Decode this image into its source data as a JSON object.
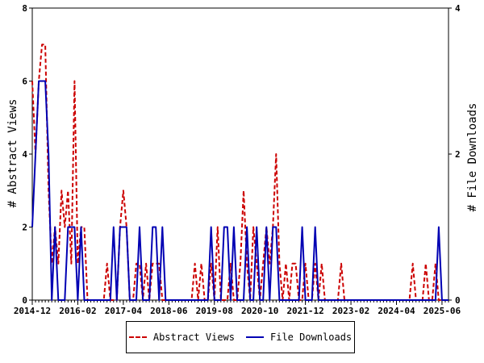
{
  "chart_data": {
    "type": "line",
    "xlabel": "",
    "ylabel": "# Abstract Views",
    "y2label": "# File Downloads",
    "ylim": [
      0,
      8
    ],
    "y2lim": [
      0,
      4
    ],
    "yticks": [
      0,
      2,
      4,
      6,
      8
    ],
    "y2ticks": [
      0,
      2,
      4
    ],
    "xrange": [
      "2014-12",
      "2025-08"
    ],
    "xtick_labels": [
      "2014-12",
      "2016-02",
      "2017-04",
      "2018-06",
      "2019-08",
      "2020-10",
      "2021-12",
      "2023-02",
      "2024-04",
      "2025-06"
    ],
    "grid": false,
    "legend_position": "bottom-center",
    "series": [
      {
        "name": "Abstract Views",
        "axis": "left",
        "color": "#cc0000",
        "style": "dashed",
        "points": [
          [
            "2014-12",
            6
          ],
          [
            "2015-01",
            4
          ],
          [
            "2015-02",
            6
          ],
          [
            "2015-03",
            7
          ],
          [
            "2015-04",
            7
          ],
          [
            "2015-05",
            3
          ],
          [
            "2015-06",
            1
          ],
          [
            "2015-07",
            2
          ],
          [
            "2015-08",
            1
          ],
          [
            "2015-09",
            3
          ],
          [
            "2015-10",
            2
          ],
          [
            "2015-11",
            3
          ],
          [
            "2015-12",
            1
          ],
          [
            "2015-13",
            6
          ],
          [
            "2016-02",
            1
          ],
          [
            "2016-03",
            2
          ],
          [
            "2016-04",
            2
          ],
          [
            "2016-05",
            0
          ],
          [
            "2016-06",
            0
          ],
          [
            "2016-07",
            0
          ],
          [
            "2016-08",
            0
          ],
          [
            "2016-09",
            0
          ],
          [
            "2016-10",
            0
          ],
          [
            "2016-11",
            1
          ],
          [
            "2016-12",
            0
          ],
          [
            "2017-01",
            0
          ],
          [
            "2017-02",
            0
          ],
          [
            "2017-03",
            2
          ],
          [
            "2017-04",
            3
          ],
          [
            "2017-05",
            2
          ],
          [
            "2017-06",
            0
          ],
          [
            "2017-07",
            0
          ],
          [
            "2017-08",
            1
          ],
          [
            "2017-09",
            1
          ],
          [
            "2017-10",
            0
          ],
          [
            "2017-11",
            1
          ],
          [
            "2017-12",
            0
          ],
          [
            "2018-01",
            1
          ],
          [
            "2018-02",
            1
          ],
          [
            "2018-03",
            1
          ],
          [
            "2018-04",
            0
          ],
          [
            "2018-05",
            0
          ],
          [
            "2018-06",
            0
          ],
          [
            "2018-07",
            0
          ],
          [
            "2018-08",
            0
          ],
          [
            "2018-09",
            0
          ],
          [
            "2018-10",
            0
          ],
          [
            "2018-11",
            0
          ],
          [
            "2018-12",
            0
          ],
          [
            "2019-01",
            0
          ],
          [
            "2019-02",
            1
          ],
          [
            "2019-03",
            0
          ],
          [
            "2019-04",
            1
          ],
          [
            "2019-05",
            0
          ],
          [
            "2019-06",
            0
          ],
          [
            "2019-07",
            1
          ],
          [
            "2019-08",
            0
          ],
          [
            "2019-09",
            2
          ],
          [
            "2019-10",
            0
          ],
          [
            "2019-11",
            0
          ],
          [
            "2019-12",
            0
          ],
          [
            "2020-01",
            1
          ],
          [
            "2020-02",
            0
          ],
          [
            "2020-03",
            0
          ],
          [
            "2020-04",
            1
          ],
          [
            "2020-05",
            3
          ],
          [
            "2020-06",
            1
          ],
          [
            "2020-07",
            0
          ],
          [
            "2020-08",
            2
          ],
          [
            "2020-09",
            1
          ],
          [
            "2020-10",
            0
          ],
          [
            "2020-11",
            1
          ],
          [
            "2020-12",
            2
          ],
          [
            "2021-01",
            1
          ],
          [
            "2021-02",
            2
          ],
          [
            "2021-03",
            4
          ],
          [
            "2021-04",
            1
          ],
          [
            "2021-05",
            0
          ],
          [
            "2021-06",
            1
          ],
          [
            "2021-07",
            0
          ],
          [
            "2021-08",
            1
          ],
          [
            "2021-09",
            1
          ],
          [
            "2021-10",
            0
          ],
          [
            "2021-11",
            0
          ],
          [
            "2021-12",
            1
          ],
          [
            "2022-01",
            0
          ],
          [
            "2022-02",
            0
          ],
          [
            "2022-03",
            1
          ],
          [
            "2022-04",
            0
          ],
          [
            "2022-05",
            1
          ],
          [
            "2022-06",
            0
          ],
          [
            "2022-07",
            0
          ],
          [
            "2022-08",
            0
          ],
          [
            "2022-09",
            0
          ],
          [
            "2022-10",
            0
          ],
          [
            "2022-11",
            1
          ],
          [
            "2022-12",
            0
          ],
          [
            "2023-01",
            0
          ],
          [
            "2023-02",
            0
          ],
          [
            "2023-03",
            0
          ],
          [
            "2023-04",
            0
          ],
          [
            "2023-05",
            0
          ],
          [
            "2023-06",
            0
          ],
          [
            "2023-07",
            0
          ],
          [
            "2023-08",
            0
          ],
          [
            "2023-09",
            0
          ],
          [
            "2023-10",
            0
          ],
          [
            "2023-11",
            0
          ],
          [
            "2023-12",
            0
          ],
          [
            "2024-01",
            0
          ],
          [
            "2024-02",
            0
          ],
          [
            "2024-03",
            0
          ],
          [
            "2024-04",
            0
          ],
          [
            "2024-05",
            0
          ],
          [
            "2024-06",
            0
          ],
          [
            "2024-07",
            0
          ],
          [
            "2024-08",
            0
          ],
          [
            "2024-09",
            1
          ],
          [
            "2024-10",
            0
          ],
          [
            "2024-11",
            0
          ],
          [
            "2024-12",
            0
          ],
          [
            "2025-01",
            1
          ],
          [
            "2025-02",
            0
          ],
          [
            "2025-03",
            0
          ],
          [
            "2025-04",
            1
          ],
          [
            "2025-05",
            0
          ],
          [
            "2025-06",
            0
          ],
          [
            "2025-07",
            0
          ],
          [
            "2025-08",
            0
          ]
        ]
      },
      {
        "name": "File Downloads",
        "axis": "right",
        "color": "#0000b3",
        "style": "solid",
        "points": [
          [
            "2014-12",
            1
          ],
          [
            "2015-01",
            2
          ],
          [
            "2015-02",
            3
          ],
          [
            "2015-03",
            3
          ],
          [
            "2015-04",
            3
          ],
          [
            "2015-05",
            2
          ],
          [
            "2015-06",
            0
          ],
          [
            "2015-07",
            1
          ],
          [
            "2015-08",
            0
          ],
          [
            "2015-09",
            0
          ],
          [
            "2015-10",
            0
          ],
          [
            "2015-11",
            1
          ],
          [
            "2015-12",
            1
          ],
          [
            "2016-01",
            1
          ],
          [
            "2016-02",
            0
          ],
          [
            "2016-03",
            1
          ],
          [
            "2016-04",
            0
          ],
          [
            "2016-05",
            0
          ],
          [
            "2016-06",
            0
          ],
          [
            "2016-07",
            0
          ],
          [
            "2016-08",
            0
          ],
          [
            "2016-09",
            0
          ],
          [
            "2016-10",
            0
          ],
          [
            "2016-11",
            0
          ],
          [
            "2016-12",
            0
          ],
          [
            "2017-01",
            1
          ],
          [
            "2017-02",
            0
          ],
          [
            "2017-03",
            1
          ],
          [
            "2017-04",
            1
          ],
          [
            "2017-05",
            1
          ],
          [
            "2017-06",
            0
          ],
          [
            "2017-07",
            0
          ],
          [
            "2017-08",
            0
          ],
          [
            "2017-09",
            1
          ],
          [
            "2017-10",
            0
          ],
          [
            "2017-11",
            0
          ],
          [
            "2017-12",
            0
          ],
          [
            "2018-01",
            1
          ],
          [
            "2018-02",
            1
          ],
          [
            "2018-03",
            0
          ],
          [
            "2018-04",
            1
          ],
          [
            "2018-05",
            0
          ],
          [
            "2018-06",
            0
          ],
          [
            "2018-07",
            0
          ],
          [
            "2018-08",
            0
          ],
          [
            "2018-09",
            0
          ],
          [
            "2018-10",
            0
          ],
          [
            "2018-11",
            0
          ],
          [
            "2018-12",
            0
          ],
          [
            "2019-01",
            0
          ],
          [
            "2019-02",
            0
          ],
          [
            "2019-03",
            0
          ],
          [
            "2019-04",
            0
          ],
          [
            "2019-05",
            0
          ],
          [
            "2019-06",
            0
          ],
          [
            "2019-07",
            1
          ],
          [
            "2019-08",
            0
          ],
          [
            "2019-09",
            0
          ],
          [
            "2019-10",
            0
          ],
          [
            "2019-11",
            1
          ],
          [
            "2019-12",
            1
          ],
          [
            "2020-01",
            0
          ],
          [
            "2020-02",
            1
          ],
          [
            "2020-03",
            0
          ],
          [
            "2020-04",
            0
          ],
          [
            "2020-05",
            0
          ],
          [
            "2020-06",
            1
          ],
          [
            "2020-07",
            0
          ],
          [
            "2020-08",
            0
          ],
          [
            "2020-09",
            1
          ],
          [
            "2020-10",
            0
          ],
          [
            "2020-11",
            0
          ],
          [
            "2020-12",
            1
          ],
          [
            "2021-01",
            0
          ],
          [
            "2021-02",
            1
          ],
          [
            "2021-03",
            1
          ],
          [
            "2021-04",
            0
          ],
          [
            "2021-05",
            0
          ],
          [
            "2021-06",
            0
          ],
          [
            "2021-07",
            0
          ],
          [
            "2021-08",
            0
          ],
          [
            "2021-09",
            0
          ],
          [
            "2021-10",
            0
          ],
          [
            "2021-11",
            1
          ],
          [
            "2021-12",
            0
          ],
          [
            "2022-01",
            0
          ],
          [
            "2022-02",
            0
          ],
          [
            "2022-03",
            1
          ],
          [
            "2022-04",
            0
          ],
          [
            "2022-05",
            0
          ],
          [
            "2022-06",
            0
          ],
          [
            "2022-07",
            0
          ],
          [
            "2022-08",
            0
          ],
          [
            "2022-09",
            0
          ],
          [
            "2022-10",
            0
          ],
          [
            "2022-11",
            0
          ],
          [
            "2022-12",
            0
          ],
          [
            "2023-01",
            0
          ],
          [
            "2023-02",
            0
          ],
          [
            "2023-03",
            0
          ],
          [
            "2023-04",
            0
          ],
          [
            "2023-05",
            0
          ],
          [
            "2023-06",
            0
          ],
          [
            "2023-07",
            0
          ],
          [
            "2023-08",
            0
          ],
          [
            "2023-09",
            0
          ],
          [
            "2023-10",
            0
          ],
          [
            "2023-11",
            0
          ],
          [
            "2023-12",
            0
          ],
          [
            "2024-01",
            0
          ],
          [
            "2024-02",
            0
          ],
          [
            "2024-03",
            0
          ],
          [
            "2024-04",
            0
          ],
          [
            "2024-05",
            0
          ],
          [
            "2024-06",
            0
          ],
          [
            "2024-07",
            0
          ],
          [
            "2024-08",
            0
          ],
          [
            "2024-09",
            0
          ],
          [
            "2024-10",
            0
          ],
          [
            "2024-11",
            0
          ],
          [
            "2024-12",
            0
          ],
          [
            "2025-01",
            0
          ],
          [
            "2025-02",
            0
          ],
          [
            "2025-03",
            0
          ],
          [
            "2025-04",
            0
          ],
          [
            "2025-05",
            1
          ],
          [
            "2025-06",
            0
          ],
          [
            "2025-07",
            0
          ],
          [
            "2025-08",
            0
          ]
        ]
      }
    ]
  }
}
